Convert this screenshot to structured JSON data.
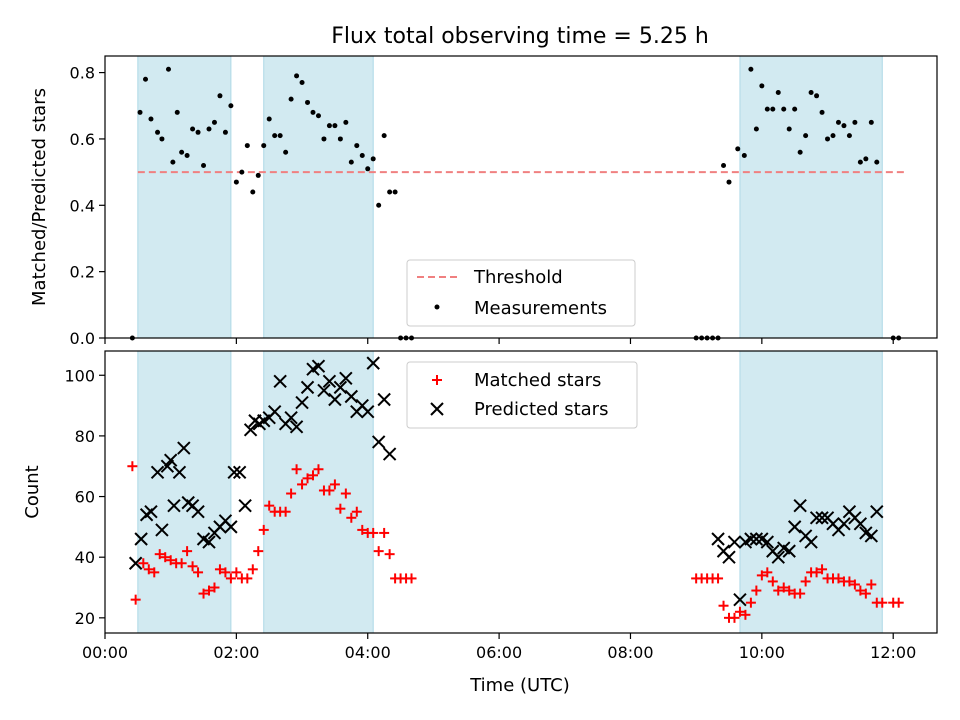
{
  "chart_data": [
    {
      "type": "scatter",
      "title": "Flux total observing time = 5.25 h",
      "xlabel": "",
      "ylabel": "Matched/Predicted stars",
      "xlim": [
        "00:00",
        "12:40"
      ],
      "ylim": [
        0,
        0.85
      ],
      "yticks": [
        "0.0",
        "0.2",
        "0.4",
        "0.6",
        "0.8"
      ],
      "xtick_labels_shown": false,
      "grid": false,
      "legend_position": "lower-center",
      "observing_windows": [
        [
          "00:30",
          "01:55"
        ],
        [
          "02:25",
          "04:05"
        ],
        [
          "09:40",
          "11:50"
        ]
      ],
      "window_color": "#add8e6",
      "threshold": {
        "name": "Threshold",
        "value": 0.5,
        "x_range": [
          "00:30",
          "12:10"
        ],
        "color": "#f08080"
      },
      "series": [
        {
          "name": "Measurements",
          "color": "#000000",
          "points": [
            [
              "00:25",
              0.0
            ],
            [
              "00:32",
              0.68
            ],
            [
              "00:37",
              0.78
            ],
            [
              "00:42",
              0.66
            ],
            [
              "00:48",
              0.62
            ],
            [
              "00:52",
              0.6
            ],
            [
              "00:58",
              0.81
            ],
            [
              "01:02",
              0.53
            ],
            [
              "01:06",
              0.68
            ],
            [
              "01:10",
              0.56
            ],
            [
              "01:15",
              0.55
            ],
            [
              "01:20",
              0.63
            ],
            [
              "01:25",
              0.62
            ],
            [
              "01:30",
              0.52
            ],
            [
              "01:35",
              0.63
            ],
            [
              "01:40",
              0.65
            ],
            [
              "01:45",
              0.73
            ],
            [
              "01:50",
              0.62
            ],
            [
              "01:55",
              0.7
            ],
            [
              "02:00",
              0.47
            ],
            [
              "02:05",
              0.5
            ],
            [
              "02:10",
              0.58
            ],
            [
              "02:15",
              0.44
            ],
            [
              "02:20",
              0.49
            ],
            [
              "02:25",
              0.58
            ],
            [
              "02:30",
              0.66
            ],
            [
              "02:35",
              0.61
            ],
            [
              "02:40",
              0.61
            ],
            [
              "02:45",
              0.56
            ],
            [
              "02:50",
              0.72
            ],
            [
              "02:55",
              0.79
            ],
            [
              "03:00",
              0.77
            ],
            [
              "03:05",
              0.71
            ],
            [
              "03:10",
              0.68
            ],
            [
              "03:15",
              0.67
            ],
            [
              "03:20",
              0.6
            ],
            [
              "03:25",
              0.64
            ],
            [
              "03:30",
              0.64
            ],
            [
              "03:35",
              0.6
            ],
            [
              "03:40",
              0.65
            ],
            [
              "03:45",
              0.53
            ],
            [
              "03:50",
              0.58
            ],
            [
              "03:55",
              0.55
            ],
            [
              "04:00",
              0.51
            ],
            [
              "04:05",
              0.54
            ],
            [
              "04:10",
              0.4
            ],
            [
              "04:15",
              0.61
            ],
            [
              "04:20",
              0.44
            ],
            [
              "04:25",
              0.44
            ],
            [
              "04:30",
              0.0
            ],
            [
              "04:35",
              0.0
            ],
            [
              "04:40",
              0.0
            ],
            [
              "09:00",
              0.0
            ],
            [
              "09:05",
              0.0
            ],
            [
              "09:10",
              0.0
            ],
            [
              "09:15",
              0.0
            ],
            [
              "09:20",
              0.0
            ],
            [
              "09:25",
              0.52
            ],
            [
              "09:30",
              0.47
            ],
            [
              "09:38",
              0.57
            ],
            [
              "09:44",
              0.55
            ],
            [
              "09:50",
              0.81
            ],
            [
              "09:55",
              0.63
            ],
            [
              "10:00",
              0.76
            ],
            [
              "10:05",
              0.69
            ],
            [
              "10:10",
              0.69
            ],
            [
              "10:15",
              0.74
            ],
            [
              "10:20",
              0.69
            ],
            [
              "10:25",
              0.63
            ],
            [
              "10:30",
              0.69
            ],
            [
              "10:35",
              0.56
            ],
            [
              "10:40",
              0.61
            ],
            [
              "10:45",
              0.74
            ],
            [
              "10:50",
              0.73
            ],
            [
              "10:55",
              0.68
            ],
            [
              "11:00",
              0.6
            ],
            [
              "11:05",
              0.61
            ],
            [
              "11:10",
              0.65
            ],
            [
              "11:15",
              0.64
            ],
            [
              "11:20",
              0.61
            ],
            [
              "11:25",
              0.65
            ],
            [
              "11:30",
              0.53
            ],
            [
              "11:35",
              0.54
            ],
            [
              "11:40",
              0.65
            ],
            [
              "11:45",
              0.53
            ],
            [
              "12:00",
              0.0
            ],
            [
              "12:05",
              0.0
            ]
          ]
        }
      ]
    },
    {
      "type": "scatter",
      "title": "",
      "xlabel": "Time (UTC)",
      "ylabel": "Count",
      "xlim": [
        "00:00",
        "12:40"
      ],
      "xticks": [
        "00:00",
        "02:00",
        "04:00",
        "06:00",
        "08:00",
        "10:00",
        "12:00"
      ],
      "ylim": [
        15,
        108
      ],
      "yticks": [
        "20",
        "40",
        "60",
        "80",
        "100"
      ],
      "grid": false,
      "legend_position": "top-center",
      "observing_windows": [
        [
          "00:30",
          "01:55"
        ],
        [
          "02:25",
          "04:05"
        ],
        [
          "09:40",
          "11:50"
        ]
      ],
      "window_color": "#add8e6",
      "series": [
        {
          "name": "Matched stars",
          "marker": "plus",
          "color": "#ff0000",
          "points": [
            [
              "00:25",
              70
            ],
            [
              "00:28",
              26
            ],
            [
              "00:35",
              38
            ],
            [
              "00:40",
              36
            ],
            [
              "00:45",
              35
            ],
            [
              "00:50",
              41
            ],
            [
              "00:55",
              40
            ],
            [
              "01:00",
              39
            ],
            [
              "01:05",
              38
            ],
            [
              "01:10",
              38
            ],
            [
              "01:15",
              42
            ],
            [
              "01:20",
              37
            ],
            [
              "01:25",
              35
            ],
            [
              "01:30",
              28
            ],
            [
              "01:35",
              29
            ],
            [
              "01:40",
              30
            ],
            [
              "01:45",
              36
            ],
            [
              "01:50",
              35
            ],
            [
              "01:55",
              33
            ],
            [
              "02:00",
              35
            ],
            [
              "02:05",
              33
            ],
            [
              "02:10",
              33
            ],
            [
              "02:15",
              36
            ],
            [
              "02:20",
              42
            ],
            [
              "02:25",
              49
            ],
            [
              "02:30",
              57
            ],
            [
              "02:35",
              55
            ],
            [
              "02:40",
              55
            ],
            [
              "02:45",
              55
            ],
            [
              "02:50",
              61
            ],
            [
              "02:55",
              69
            ],
            [
              "03:00",
              64
            ],
            [
              "03:05",
              66
            ],
            [
              "03:10",
              67
            ],
            [
              "03:15",
              69
            ],
            [
              "03:20",
              62
            ],
            [
              "03:25",
              62
            ],
            [
              "03:30",
              64
            ],
            [
              "03:35",
              56
            ],
            [
              "03:40",
              61
            ],
            [
              "03:45",
              53
            ],
            [
              "03:50",
              55
            ],
            [
              "03:55",
              49
            ],
            [
              "04:00",
              48
            ],
            [
              "04:05",
              48
            ],
            [
              "04:10",
              42
            ],
            [
              "04:15",
              48
            ],
            [
              "04:20",
              41
            ],
            [
              "04:25",
              33
            ],
            [
              "04:30",
              33
            ],
            [
              "04:35",
              33
            ],
            [
              "04:40",
              33
            ],
            [
              "09:00",
              33
            ],
            [
              "09:05",
              33
            ],
            [
              "09:10",
              33
            ],
            [
              "09:15",
              33
            ],
            [
              "09:20",
              33
            ],
            [
              "09:25",
              24
            ],
            [
              "09:30",
              20
            ],
            [
              "09:35",
              20
            ],
            [
              "09:40",
              22
            ],
            [
              "09:45",
              21
            ],
            [
              "09:50",
              25
            ],
            [
              "09:55",
              29
            ],
            [
              "10:00",
              34
            ],
            [
              "10:05",
              35
            ],
            [
              "10:10",
              32
            ],
            [
              "10:15",
              29
            ],
            [
              "10:20",
              30
            ],
            [
              "10:25",
              29
            ],
            [
              "10:30",
              28
            ],
            [
              "10:35",
              28
            ],
            [
              "10:40",
              32
            ],
            [
              "10:45",
              35
            ],
            [
              "10:50",
              35
            ],
            [
              "10:55",
              36
            ],
            [
              "11:00",
              33
            ],
            [
              "11:05",
              33
            ],
            [
              "11:10",
              33
            ],
            [
              "11:15",
              32
            ],
            [
              "11:20",
              32
            ],
            [
              "11:25",
              31
            ],
            [
              "11:30",
              29
            ],
            [
              "11:35",
              28
            ],
            [
              "11:40",
              31
            ],
            [
              "11:45",
              25
            ],
            [
              "11:50",
              25
            ],
            [
              "12:00",
              25
            ],
            [
              "12:05",
              25
            ]
          ]
        },
        {
          "name": "Predicted stars",
          "marker": "x",
          "color": "#000000",
          "points": [
            [
              "00:28",
              38
            ],
            [
              "00:33",
              46
            ],
            [
              "00:38",
              54
            ],
            [
              "00:42",
              55
            ],
            [
              "00:48",
              68
            ],
            [
              "00:52",
              49
            ],
            [
              "00:57",
              70
            ],
            [
              "01:00",
              72
            ],
            [
              "01:03",
              57
            ],
            [
              "01:08",
              68
            ],
            [
              "01:12",
              76
            ],
            [
              "01:16",
              58
            ],
            [
              "01:20",
              57
            ],
            [
              "01:25",
              55
            ],
            [
              "01:30",
              46
            ],
            [
              "01:35",
              45
            ],
            [
              "01:40",
              48
            ],
            [
              "01:45",
              50
            ],
            [
              "01:50",
              52
            ],
            [
              "01:55",
              50
            ],
            [
              "01:58",
              68
            ],
            [
              "02:03",
              68
            ],
            [
              "02:08",
              57
            ],
            [
              "02:13",
              82
            ],
            [
              "02:17",
              85
            ],
            [
              "02:21",
              84
            ],
            [
              "02:25",
              85
            ],
            [
              "02:30",
              86
            ],
            [
              "02:35",
              88
            ],
            [
              "02:40",
              98
            ],
            [
              "02:45",
              84
            ],
            [
              "02:50",
              86
            ],
            [
              "02:55",
              83
            ],
            [
              "03:00",
              91
            ],
            [
              "03:05",
              96
            ],
            [
              "03:10",
              102
            ],
            [
              "03:15",
              103
            ],
            [
              "03:20",
              95
            ],
            [
              "03:25",
              98
            ],
            [
              "03:30",
              92
            ],
            [
              "03:35",
              96
            ],
            [
              "03:40",
              99
            ],
            [
              "03:45",
              93
            ],
            [
              "03:50",
              88
            ],
            [
              "03:55",
              90
            ],
            [
              "04:00",
              88
            ],
            [
              "04:05",
              104
            ],
            [
              "04:10",
              78
            ],
            [
              "04:15",
              92
            ],
            [
              "04:20",
              74
            ],
            [
              "09:20",
              46
            ],
            [
              "09:25",
              42
            ],
            [
              "09:30",
              40
            ],
            [
              "09:35",
              45
            ],
            [
              "09:40",
              26
            ],
            [
              "09:45",
              45
            ],
            [
              "09:50",
              46
            ],
            [
              "09:55",
              46
            ],
            [
              "10:00",
              46
            ],
            [
              "10:05",
              45
            ],
            [
              "10:10",
              42
            ],
            [
              "10:15",
              40
            ],
            [
              "10:20",
              43
            ],
            [
              "10:25",
              42
            ],
            [
              "10:30",
              50
            ],
            [
              "10:35",
              57
            ],
            [
              "10:40",
              47
            ],
            [
              "10:45",
              45
            ],
            [
              "10:50",
              53
            ],
            [
              "10:55",
              53
            ],
            [
              "11:00",
              53
            ],
            [
              "11:05",
              51
            ],
            [
              "11:10",
              49
            ],
            [
              "11:15",
              51
            ],
            [
              "11:20",
              55
            ],
            [
              "11:25",
              53
            ],
            [
              "11:30",
              51
            ],
            [
              "11:35",
              48
            ],
            [
              "11:40",
              47
            ],
            [
              "11:45",
              55
            ]
          ]
        }
      ]
    }
  ]
}
